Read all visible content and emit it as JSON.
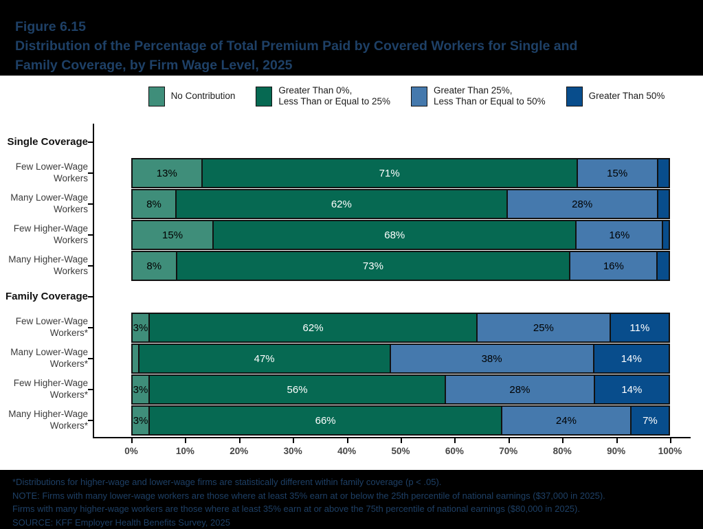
{
  "header": {
    "figure_label": "Figure 6.15",
    "title_lines": [
      "Distribution of the Percentage of Total Premium Paid by Covered Workers for Single and",
      "Family Coverage, by Firm Wage Level, 2025"
    ]
  },
  "chart_data": {
    "type": "bar",
    "variant": "horizontal-stacked-percent",
    "title": "Distribution of the Percentage of Total Premium Paid by Covered Workers for Single and Family Coverage, by Firm Wage Level, 2025",
    "xlim": [
      0,
      100
    ],
    "x_ticks": [
      "0%",
      "10%",
      "20%",
      "30%",
      "40%",
      "50%",
      "60%",
      "70%",
      "80%",
      "90%",
      "100%"
    ],
    "legend_position": "top",
    "grid": false,
    "series": [
      {
        "name": "No Contribution",
        "color": "#3f8e7a"
      },
      {
        "name": "Greater Than 0%,\nLess Than or Equal to 25%",
        "color": "#066952"
      },
      {
        "name": "Greater Than 25%,\nLess Than or Equal to 50%",
        "color": "#4579ad"
      },
      {
        "name": "Greater Than 50%",
        "color": "#084d8c"
      }
    ],
    "segment_label_text_colors": [
      "#000000",
      "#ffffff",
      "#000000",
      "#ffffff"
    ],
    "groups": [
      {
        "label": "Single Coverage",
        "rows": [
          {
            "category": "Few Lower-Wage\nWorkers",
            "values": [
              13,
              71,
              15,
              2
            ],
            "segment_labels": [
              "13%",
              "71%",
              "15%",
              ""
            ]
          },
          {
            "category": "Many Lower-Wage\nWorkers",
            "values": [
              8,
              62,
              28,
              2
            ],
            "segment_labels": [
              "8%",
              "62%",
              "28%",
              ""
            ]
          },
          {
            "category": "Few Higher-Wage\nWorkers",
            "values": [
              15,
              68,
              16,
              1
            ],
            "segment_labels": [
              "15%",
              "68%",
              "16%",
              ""
            ]
          },
          {
            "category": "Many Higher-Wage\nWorkers",
            "values": [
              8,
              73,
              16,
              2
            ],
            "segment_labels": [
              "8%",
              "73%",
              "16%",
              ""
            ]
          }
        ]
      },
      {
        "label": "Family Coverage",
        "rows": [
          {
            "category": "Few Lower-Wage\nWorkers*",
            "values": [
              3,
              62,
              25,
              11
            ],
            "segment_labels": [
              "3%",
              "62%",
              "25%",
              "11%"
            ]
          },
          {
            "category": "Many Lower-Wage\nWorkers*",
            "values": [
              1,
              47,
              38,
              14
            ],
            "segment_labels": [
              "",
              "47%",
              "38%",
              "14%"
            ]
          },
          {
            "category": "Few Higher-Wage\nWorkers*",
            "values": [
              3,
              56,
              28,
              14
            ],
            "segment_labels": [
              "3%",
              "56%",
              "28%",
              "14%"
            ]
          },
          {
            "category": "Many Higher-Wage\nWorkers*",
            "values": [
              3,
              66,
              24,
              7
            ],
            "segment_labels": [
              "3%",
              "66%",
              "24%",
              "7%"
            ]
          }
        ]
      }
    ]
  },
  "footnotes": [
    "*Distributions for higher-wage and lower-wage firms are statistically different within family coverage (p < .05).",
    "NOTE: Firms with many lower-wage workers are those where at least 35% earn at or below the 25th percentile of national earnings ($37,000 in 2025).",
    "Firms with many higher-wage workers are those where at least 35% earn at or above the 75th percentile of national earnings ($80,000 in 2025).",
    "SOURCE: KFF Employer Health Benefits Survey, 2025"
  ]
}
